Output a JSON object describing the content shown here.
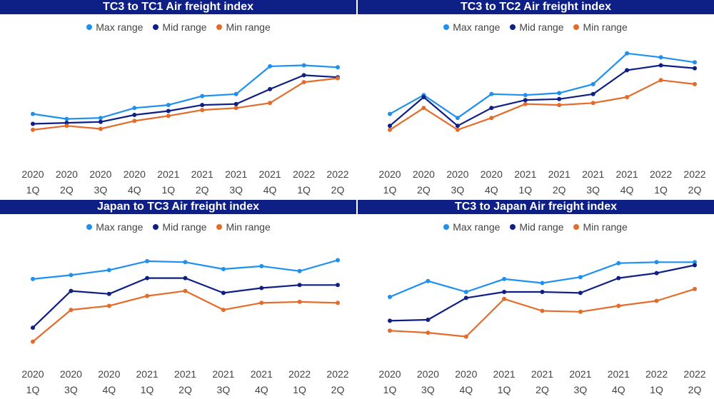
{
  "colors": {
    "max": "#1e90f0",
    "mid": "#0e1f86",
    "min": "#e46c2a",
    "title_bg": "#0e1f86"
  },
  "chart_data": [
    {
      "type": "line",
      "title": "TC3 to TC1 Air freight index",
      "categories": [
        [
          "2020",
          "1Q"
        ],
        [
          "2020",
          "2Q"
        ],
        [
          "2020",
          "3Q"
        ],
        [
          "2020",
          "4Q"
        ],
        [
          "2021",
          "1Q"
        ],
        [
          "2021",
          "2Q"
        ],
        [
          "2021",
          "3Q"
        ],
        [
          "2021",
          "4Q"
        ],
        [
          "2022",
          "1Q"
        ],
        [
          "2022",
          "2Q"
        ]
      ],
      "ylim": [
        0,
        100
      ],
      "series": [
        {
          "name": "Max range",
          "color": "#1e90f0",
          "values": [
            47,
            42,
            43,
            53,
            56,
            65,
            67,
            95,
            96,
            94
          ]
        },
        {
          "name": "Mid range",
          "color": "#0e1f86",
          "values": [
            37,
            38,
            39,
            46,
            50,
            56,
            57,
            72,
            86,
            84
          ]
        },
        {
          "name": "Min range",
          "color": "#e46c2a",
          "values": [
            31,
            35,
            32,
            40,
            45,
            51,
            53,
            58,
            79,
            83
          ]
        }
      ]
    },
    {
      "type": "line",
      "title": "TC3 to TC2 Air freight index",
      "categories": [
        [
          "2020",
          "1Q"
        ],
        [
          "2020",
          "2Q"
        ],
        [
          "2020",
          "3Q"
        ],
        [
          "2020",
          "4Q"
        ],
        [
          "2021",
          "1Q"
        ],
        [
          "2021",
          "2Q"
        ],
        [
          "2021",
          "3Q"
        ],
        [
          "2021",
          "4Q"
        ],
        [
          "2022",
          "1Q"
        ],
        [
          "2022",
          "2Q"
        ]
      ],
      "ylim": [
        0,
        100
      ],
      "series": [
        {
          "name": "Max range",
          "color": "#1e90f0",
          "values": [
            47,
            66,
            43,
            67,
            66,
            68,
            77,
            108,
            104,
            99
          ]
        },
        {
          "name": "Mid range",
          "color": "#0e1f86",
          "values": [
            35,
            64,
            35,
            53,
            61,
            62,
            67,
            91,
            96,
            93
          ]
        },
        {
          "name": "Min range",
          "color": "#e46c2a",
          "values": [
            31,
            53,
            31,
            43,
            57,
            56,
            58,
            64,
            81,
            77
          ]
        }
      ]
    },
    {
      "type": "line",
      "title": "Japan to TC3 Air freight index",
      "categories": [
        [
          "2020",
          "1Q"
        ],
        [
          "2020",
          "3Q"
        ],
        [
          "2020",
          "4Q"
        ],
        [
          "2021",
          "1Q"
        ],
        [
          "2021",
          "2Q"
        ],
        [
          "2021",
          "3Q"
        ],
        [
          "2021",
          "4Q"
        ],
        [
          "2022",
          "1Q"
        ],
        [
          "2022",
          "2Q"
        ]
      ],
      "ylim": [
        0,
        100
      ],
      "series": [
        {
          "name": "Max range",
          "color": "#1e90f0",
          "values": [
            82,
            86,
            91,
            100,
            99,
            92,
            95,
            90,
            101
          ]
        },
        {
          "name": "Mid range",
          "color": "#0e1f86",
          "values": [
            33,
            70,
            67,
            83,
            83,
            68,
            73,
            76,
            76
          ]
        },
        {
          "name": "Min range",
          "color": "#e46c2a",
          "values": [
            19,
            51,
            55,
            65,
            70,
            51,
            58,
            59,
            58
          ]
        }
      ]
    },
    {
      "type": "line",
      "title": "TC3 to Japan Air freight index",
      "categories": [
        [
          "2020",
          "1Q"
        ],
        [
          "2020",
          "3Q"
        ],
        [
          "2020",
          "4Q"
        ],
        [
          "2021",
          "1Q"
        ],
        [
          "2021",
          "2Q"
        ],
        [
          "2021",
          "3Q"
        ],
        [
          "2021",
          "4Q"
        ],
        [
          "2022",
          "1Q"
        ],
        [
          "2022",
          "2Q"
        ]
      ],
      "ylim": [
        0,
        100
      ],
      "series": [
        {
          "name": "Max range",
          "color": "#1e90f0",
          "values": [
            64,
            80,
            69,
            82,
            78,
            84,
            98,
            99,
            99
          ]
        },
        {
          "name": "Mid range",
          "color": "#0e1f86",
          "values": [
            40,
            41,
            63,
            69,
            69,
            68,
            83,
            88,
            96
          ]
        },
        {
          "name": "Min range",
          "color": "#e46c2a",
          "values": [
            30,
            28,
            24,
            62,
            50,
            49,
            55,
            60,
            72
          ]
        }
      ]
    }
  ]
}
